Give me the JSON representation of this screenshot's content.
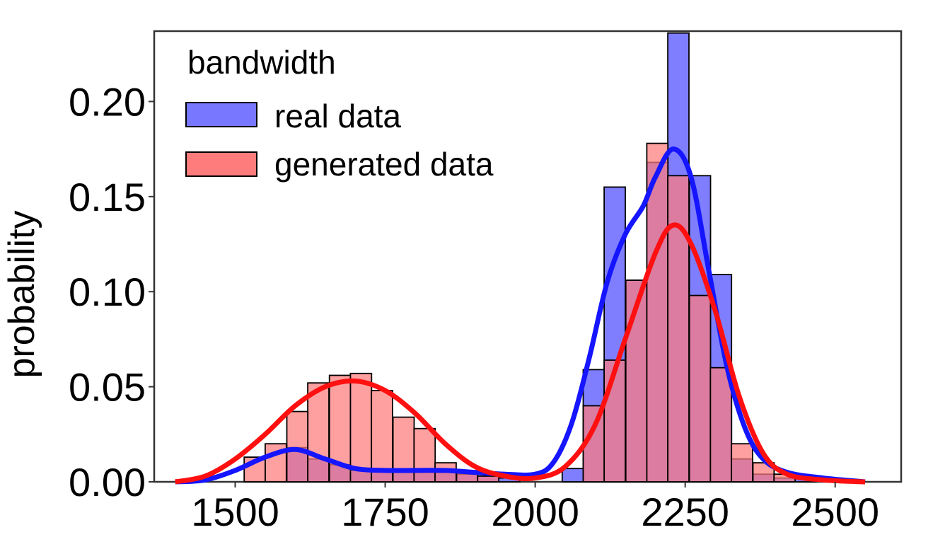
{
  "chart_data": {
    "type": "bar",
    "ylabel": "probability",
    "xlim": [
      1365,
      2610
    ],
    "ylim": [
      0,
      0.237
    ],
    "x_ticks": [
      1500,
      1750,
      2000,
      2250,
      2500
    ],
    "y_ticks": [
      0.0,
      0.05,
      0.1,
      0.15,
      0.2
    ],
    "x_tick_labels": [
      "1500",
      "1750",
      "2000",
      "2250",
      "2500"
    ],
    "y_tick_labels": [
      "0.00",
      "0.05",
      "0.10",
      "0.15",
      "0.20"
    ],
    "legend": {
      "title": "bandwidth",
      "placement": "top-left",
      "items": [
        {
          "label": "real data",
          "color": "#7777ff"
        },
        {
          "label": "generated data",
          "color": "#ff7c7c"
        }
      ]
    },
    "bin_width": 35.3,
    "series": [
      {
        "name": "real data",
        "color": "#7777ff",
        "bins": [
          [
            1586,
            0.018
          ],
          [
            1621,
            0.012
          ],
          [
            1657,
            0.009
          ],
          [
            1692,
            0.006
          ],
          [
            1727,
            0.006
          ],
          [
            1763,
            0.005
          ],
          [
            1798,
            0.005
          ],
          [
            1833,
            0.005
          ],
          [
            1869,
            0.004
          ],
          [
            1904,
            0.003
          ],
          [
            1939,
            0.002
          ],
          [
            2045,
            0.007
          ],
          [
            2080,
            0.059
          ],
          [
            2115,
            0.155
          ],
          [
            2151,
            0.106
          ],
          [
            2186,
            0.168
          ],
          [
            2221,
            0.236
          ],
          [
            2257,
            0.161
          ],
          [
            2292,
            0.109
          ],
          [
            2327,
            0.012
          ],
          [
            2363,
            0.004
          ],
          [
            2398,
            0.002
          ],
          [
            2433,
            0.002
          ]
        ],
        "kde": [
          [
            1400,
            0.0
          ],
          [
            1450,
            0.001
          ],
          [
            1500,
            0.006
          ],
          [
            1550,
            0.013
          ],
          [
            1600,
            0.017
          ],
          [
            1650,
            0.012
          ],
          [
            1700,
            0.007
          ],
          [
            1750,
            0.006
          ],
          [
            1800,
            0.006
          ],
          [
            1850,
            0.006
          ],
          [
            1900,
            0.005
          ],
          [
            1950,
            0.004
          ],
          [
            2000,
            0.004
          ],
          [
            2030,
            0.01
          ],
          [
            2060,
            0.03
          ],
          [
            2090,
            0.065
          ],
          [
            2120,
            0.105
          ],
          [
            2150,
            0.13
          ],
          [
            2180,
            0.145
          ],
          [
            2200,
            0.16
          ],
          [
            2230,
            0.175
          ],
          [
            2260,
            0.16
          ],
          [
            2290,
            0.11
          ],
          [
            2320,
            0.06
          ],
          [
            2350,
            0.028
          ],
          [
            2380,
            0.012
          ],
          [
            2420,
            0.005
          ],
          [
            2480,
            0.002
          ],
          [
            2550,
            0.0
          ]
        ]
      },
      {
        "name": "generated data",
        "color": "#ff7c7c",
        "bins": [
          [
            1515,
            0.013
          ],
          [
            1550,
            0.02
          ],
          [
            1586,
            0.037
          ],
          [
            1621,
            0.052
          ],
          [
            1657,
            0.056
          ],
          [
            1692,
            0.057
          ],
          [
            1727,
            0.048
          ],
          [
            1763,
            0.034
          ],
          [
            1798,
            0.028
          ],
          [
            1833,
            0.01
          ],
          [
            1869,
            0.005
          ],
          [
            1904,
            0.003
          ],
          [
            2080,
            0.04
          ],
          [
            2115,
            0.064
          ],
          [
            2151,
            0.106
          ],
          [
            2186,
            0.178
          ],
          [
            2221,
            0.161
          ],
          [
            2257,
            0.098
          ],
          [
            2292,
            0.06
          ],
          [
            2327,
            0.02
          ],
          [
            2363,
            0.01
          ],
          [
            2398,
            0.004
          ]
        ],
        "kde": [
          [
            1400,
            0.0
          ],
          [
            1450,
            0.003
          ],
          [
            1500,
            0.012
          ],
          [
            1550,
            0.025
          ],
          [
            1600,
            0.04
          ],
          [
            1650,
            0.05
          ],
          [
            1700,
            0.053
          ],
          [
            1750,
            0.048
          ],
          [
            1800,
            0.036
          ],
          [
            1850,
            0.02
          ],
          [
            1900,
            0.008
          ],
          [
            1950,
            0.003
          ],
          [
            2000,
            0.002
          ],
          [
            2050,
            0.008
          ],
          [
            2100,
            0.03
          ],
          [
            2150,
            0.075
          ],
          [
            2200,
            0.12
          ],
          [
            2230,
            0.135
          ],
          [
            2260,
            0.125
          ],
          [
            2300,
            0.09
          ],
          [
            2340,
            0.045
          ],
          [
            2380,
            0.015
          ],
          [
            2420,
            0.004
          ],
          [
            2480,
            0.001
          ],
          [
            2550,
            0.0
          ]
        ]
      }
    ]
  }
}
